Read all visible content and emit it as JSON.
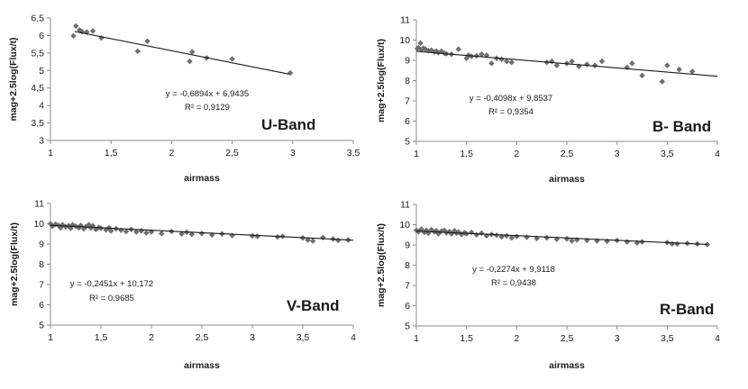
{
  "chart_data": [
    {
      "type": "scatter",
      "title": "U-Band",
      "xlabel": "airmass",
      "ylabel": "mag+2.5log(Flux/t)",
      "xlim": [
        1,
        3.5
      ],
      "ylim": [
        3,
        6.5
      ],
      "xticks": [
        "1",
        "1,5",
        "2",
        "2,5",
        "3",
        "3,5"
      ],
      "yticks": [
        "3",
        "3,5",
        "4",
        "4,5",
        "5",
        "5,5",
        "6",
        "6,5"
      ],
      "equation": "y = -0,6894x + 6,9435",
      "r2": "R² = 0,9129",
      "fit": {
        "slope": -0.6894,
        "intercept": 6.9435,
        "x0": 1.2,
        "x1": 2.97
      },
      "points": [
        [
          1.19,
          5.99
        ],
        [
          1.21,
          6.27
        ],
        [
          1.24,
          6.16
        ],
        [
          1.26,
          6.11
        ],
        [
          1.3,
          6.1
        ],
        [
          1.35,
          6.13
        ],
        [
          1.42,
          5.93
        ],
        [
          1.72,
          5.55
        ],
        [
          1.8,
          5.84
        ],
        [
          2.15,
          5.26
        ],
        [
          2.17,
          5.53
        ],
        [
          2.29,
          5.36
        ],
        [
          2.5,
          5.33
        ],
        [
          2.98,
          4.93
        ]
      ]
    },
    {
      "type": "scatter",
      "title": "B- Band",
      "xlabel": "airmass",
      "ylabel": "mag+2.5log(Flux/t)",
      "xlim": [
        1,
        4
      ],
      "ylim": [
        5,
        11
      ],
      "xticks": [
        "1",
        "1,5",
        "2",
        "2,5",
        "3",
        "3,5",
        "4"
      ],
      "yticks": [
        "5",
        "6",
        "7",
        "8",
        "9",
        "10",
        "11"
      ],
      "equation": "y = -0,4098x + 9,8537",
      "r2": "R² = 0,9354",
      "fit": {
        "slope": -0.4098,
        "intercept": 9.8537,
        "x0": 1.0,
        "x1": 4.0
      },
      "points": [
        [
          1.01,
          9.58
        ],
        [
          1.02,
          9.62
        ],
        [
          1.04,
          9.85
        ],
        [
          1.05,
          9.52
        ],
        [
          1.07,
          9.6
        ],
        [
          1.09,
          9.55
        ],
        [
          1.12,
          9.48
        ],
        [
          1.15,
          9.5
        ],
        [
          1.18,
          9.42
        ],
        [
          1.2,
          9.45
        ],
        [
          1.22,
          9.38
        ],
        [
          1.25,
          9.45
        ],
        [
          1.28,
          9.35
        ],
        [
          1.3,
          9.32
        ],
        [
          1.35,
          9.3
        ],
        [
          1.42,
          9.55
        ],
        [
          1.5,
          9.1
        ],
        [
          1.52,
          9.25
        ],
        [
          1.55,
          9.2
        ],
        [
          1.6,
          9.22
        ],
        [
          1.65,
          9.3
        ],
        [
          1.7,
          9.25
        ],
        [
          1.75,
          8.85
        ],
        [
          1.8,
          9.1
        ],
        [
          1.85,
          9.05
        ],
        [
          1.9,
          8.95
        ],
        [
          1.95,
          8.9
        ],
        [
          2.3,
          8.9
        ],
        [
          2.35,
          8.95
        ],
        [
          2.4,
          8.75
        ],
        [
          2.5,
          8.85
        ],
        [
          2.55,
          8.95
        ],
        [
          2.62,
          8.7
        ],
        [
          2.7,
          8.8
        ],
        [
          2.78,
          8.75
        ],
        [
          2.85,
          8.95
        ],
        [
          3.1,
          8.65
        ],
        [
          3.15,
          8.85
        ],
        [
          3.25,
          8.25
        ],
        [
          3.45,
          7.95
        ],
        [
          3.5,
          8.75
        ],
        [
          3.62,
          8.55
        ],
        [
          3.75,
          8.45
        ]
      ]
    },
    {
      "type": "scatter",
      "title": "V-Band",
      "xlabel": "airmass",
      "ylabel": "mag+2.5log(Flux/t)",
      "xlim": [
        1,
        4
      ],
      "ylim": [
        5,
        11
      ],
      "xticks": [
        "1",
        "1,5",
        "2",
        "2,5",
        "3",
        "3,5",
        "4"
      ],
      "yticks": [
        "5",
        "6",
        "7",
        "8",
        "9",
        "10",
        "11"
      ],
      "equation": "y = -0,2451x + 10,172",
      "r2": "R² = 0,9685",
      "fit": {
        "slope": -0.2451,
        "intercept": 10.172,
        "x0": 1.0,
        "x1": 4.0
      },
      "points": [
        [
          1.0,
          10.0
        ],
        [
          1.02,
          9.88
        ],
        [
          1.05,
          9.98
        ],
        [
          1.08,
          9.92
        ],
        [
          1.1,
          9.8
        ],
        [
          1.12,
          9.95
        ],
        [
          1.15,
          9.85
        ],
        [
          1.18,
          9.9
        ],
        [
          1.2,
          9.78
        ],
        [
          1.22,
          9.95
        ],
        [
          1.25,
          9.88
        ],
        [
          1.28,
          9.8
        ],
        [
          1.3,
          9.92
        ],
        [
          1.33,
          9.75
        ],
        [
          1.35,
          9.85
        ],
        [
          1.38,
          9.95
        ],
        [
          1.4,
          9.8
        ],
        [
          1.42,
          9.9
        ],
        [
          1.45,
          9.72
        ],
        [
          1.48,
          9.82
        ],
        [
          1.5,
          9.78
        ],
        [
          1.55,
          9.7
        ],
        [
          1.58,
          9.8
        ],
        [
          1.6,
          9.65
        ],
        [
          1.65,
          9.75
        ],
        [
          1.7,
          9.68
        ],
        [
          1.75,
          9.62
        ],
        [
          1.8,
          9.72
        ],
        [
          1.85,
          9.6
        ],
        [
          1.9,
          9.65
        ],
        [
          1.95,
          9.55
        ],
        [
          2.0,
          9.6
        ],
        [
          2.1,
          9.52
        ],
        [
          2.2,
          9.62
        ],
        [
          2.3,
          9.5
        ],
        [
          2.35,
          9.58
        ],
        [
          2.4,
          9.48
        ],
        [
          2.5,
          9.52
        ],
        [
          2.6,
          9.45
        ],
        [
          2.7,
          9.5
        ],
        [
          2.8,
          9.42
        ],
        [
          3.0,
          9.4
        ],
        [
          3.05,
          9.38
        ],
        [
          3.25,
          9.35
        ],
        [
          3.3,
          9.38
        ],
        [
          3.5,
          9.3
        ],
        [
          3.55,
          9.2
        ],
        [
          3.6,
          9.15
        ],
        [
          3.7,
          9.32
        ],
        [
          3.8,
          9.25
        ],
        [
          3.85,
          9.18
        ],
        [
          3.95,
          9.2
        ]
      ]
    },
    {
      "type": "scatter",
      "title": "R-Band",
      "xlabel": "airmass",
      "ylabel": "mag+2.5log(Flux/t)",
      "xlim": [
        1,
        4
      ],
      "ylim": [
        5,
        11
      ],
      "xticks": [
        "1",
        "1,5",
        "2",
        "2,5",
        "3",
        "3,5",
        "4"
      ],
      "yticks": [
        "5",
        "6",
        "7",
        "8",
        "9",
        "10",
        "11"
      ],
      "equation": "y = -0,2274x + 9,9118",
      "r2": "R² = 0,9438",
      "fit": {
        "slope": -0.2274,
        "intercept": 9.9118,
        "x0": 1.0,
        "x1": 3.9
      },
      "points": [
        [
          1.0,
          9.72
        ],
        [
          1.02,
          9.65
        ],
        [
          1.05,
          9.78
        ],
        [
          1.08,
          9.62
        ],
        [
          1.1,
          9.72
        ],
        [
          1.12,
          9.58
        ],
        [
          1.15,
          9.75
        ],
        [
          1.18,
          9.65
        ],
        [
          1.2,
          9.7
        ],
        [
          1.22,
          9.55
        ],
        [
          1.25,
          9.68
        ],
        [
          1.28,
          9.72
        ],
        [
          1.3,
          9.6
        ],
        [
          1.33,
          9.66
        ],
        [
          1.35,
          9.55
        ],
        [
          1.38,
          9.7
        ],
        [
          1.4,
          9.58
        ],
        [
          1.42,
          9.64
        ],
        [
          1.45,
          9.52
        ],
        [
          1.48,
          9.6
        ],
        [
          1.5,
          9.55
        ],
        [
          1.55,
          9.62
        ],
        [
          1.6,
          9.5
        ],
        [
          1.65,
          9.58
        ],
        [
          1.7,
          9.45
        ],
        [
          1.75,
          9.52
        ],
        [
          1.8,
          9.48
        ],
        [
          1.85,
          9.4
        ],
        [
          1.9,
          9.45
        ],
        [
          1.95,
          9.35
        ],
        [
          2.0,
          9.42
        ],
        [
          2.1,
          9.38
        ],
        [
          2.2,
          9.32
        ],
        [
          2.3,
          9.35
        ],
        [
          2.4,
          9.28
        ],
        [
          2.5,
          9.3
        ],
        [
          2.55,
          9.2
        ],
        [
          2.6,
          9.25
        ],
        [
          2.7,
          9.22
        ],
        [
          2.8,
          9.2
        ],
        [
          2.9,
          9.18
        ],
        [
          3.0,
          9.22
        ],
        [
          3.1,
          9.15
        ],
        [
          3.2,
          9.1
        ],
        [
          3.25,
          9.15
        ],
        [
          3.5,
          9.12
        ],
        [
          3.55,
          9.05
        ],
        [
          3.6,
          9.05
        ],
        [
          3.7,
          9.08
        ],
        [
          3.8,
          9.05
        ],
        [
          3.9,
          9.02
        ]
      ]
    }
  ],
  "colors": {
    "marker": "#6e6e6e",
    "line": "#1a1a1a",
    "axis": "#8c8c8c",
    "text": "#1a1a1a"
  }
}
